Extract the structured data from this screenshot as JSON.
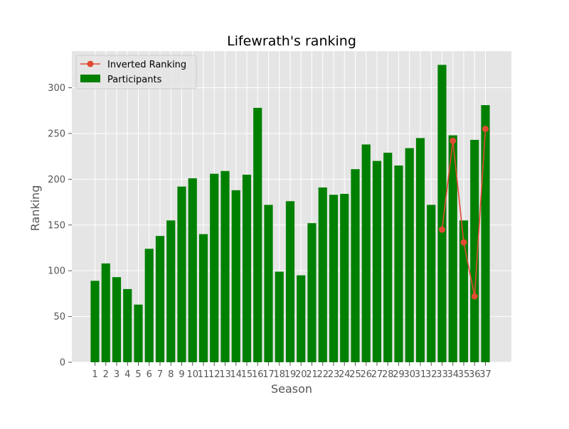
{
  "chart_data": {
    "type": "bar",
    "title": "Lifewrath's ranking",
    "xlabel": "Season",
    "ylabel": "Ranking",
    "ylim": [
      0,
      340
    ],
    "yticks": [
      0,
      50,
      100,
      150,
      200,
      250,
      300
    ],
    "grid": true,
    "legend_position": "top-left",
    "categories": [
      "1",
      "2",
      "3",
      "4",
      "5",
      "6",
      "7",
      "8",
      "9",
      "10",
      "11",
      "12",
      "13",
      "14",
      "15",
      "16",
      "17",
      "18",
      "19",
      "20",
      "21",
      "22",
      "23",
      "24",
      "25",
      "26",
      "27",
      "28",
      "29",
      "30",
      "31",
      "32",
      "33",
      "34",
      "35",
      "36",
      "37"
    ],
    "series": [
      {
        "name": "Participants",
        "type": "bar",
        "color": "#008000",
        "values": [
          89,
          108,
          93,
          80,
          63,
          124,
          138,
          155,
          192,
          201,
          140,
          206,
          209,
          188,
          205,
          278,
          172,
          99,
          176,
          95,
          152,
          191,
          183,
          184,
          211,
          238,
          220,
          229,
          215,
          234,
          245,
          172,
          325,
          248,
          155,
          243,
          281
        ]
      },
      {
        "name": "Inverted Ranking",
        "type": "line",
        "color": "#E24A33",
        "x": [
          "33",
          "34",
          "35",
          "36",
          "37"
        ],
        "values": [
          145,
          242,
          131,
          72,
          255
        ]
      }
    ]
  }
}
